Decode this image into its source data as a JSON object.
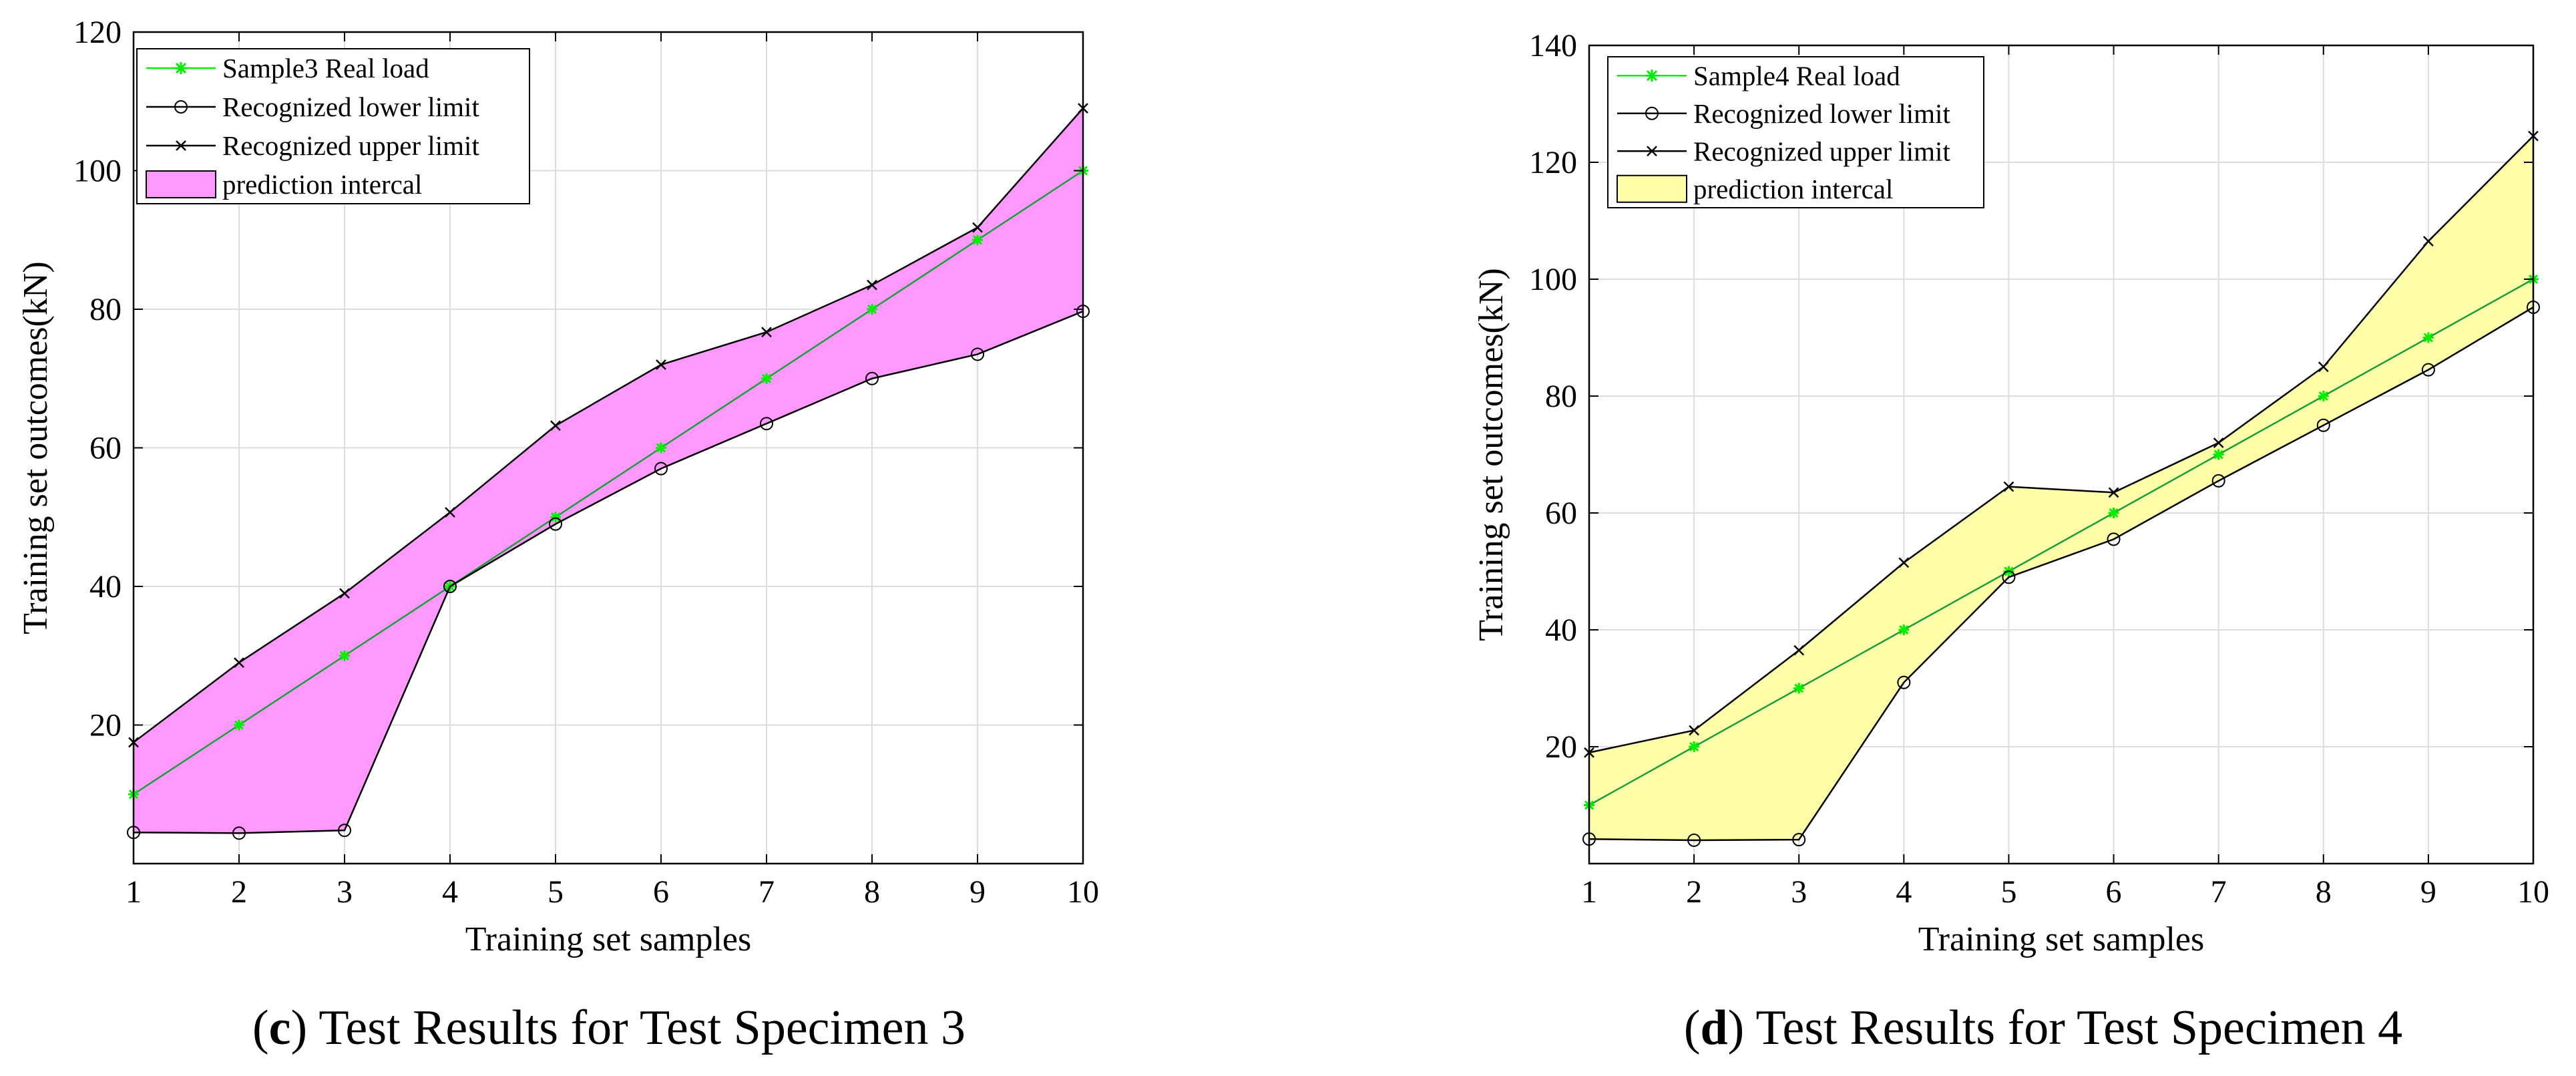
{
  "chart_data": [
    {
      "type": "line",
      "x": [
        1,
        2,
        3,
        4,
        5,
        6,
        7,
        8,
        9,
        10
      ],
      "series": [
        {
          "name": "Sample3 Real load",
          "values": [
            10,
            20,
            30,
            40,
            50,
            60,
            70,
            80,
            90,
            100
          ],
          "marker": "asterisk",
          "color": "#00ee00"
        },
        {
          "name": "Recognized lower limit",
          "values": [
            4.5,
            4.4,
            4.8,
            40,
            49,
            57,
            63.5,
            70,
            73.5,
            79.7
          ],
          "marker": "circle",
          "color": "#000000"
        },
        {
          "name": "Recognized upper limit",
          "values": [
            17.5,
            29,
            39,
            50.7,
            63.2,
            72,
            76.7,
            83.5,
            91.8,
            109
          ],
          "marker": "x",
          "color": "#000000"
        }
      ],
      "band": {
        "name": "prediction intercal",
        "color": "#ff99ff"
      },
      "title": "",
      "caption_letter": "c",
      "caption_text": " Test Results for Test Specimen 3",
      "xlabel": "Training set samples",
      "ylabel": "Training set outcomes(kN)",
      "xlim": [
        1,
        10
      ],
      "ylim": [
        0,
        120
      ],
      "xticks": [
        1,
        2,
        3,
        4,
        5,
        6,
        7,
        8,
        9,
        10
      ],
      "yticks": [
        20,
        40,
        60,
        80,
        100,
        120
      ],
      "grid": true,
      "legend_position": "top-left"
    },
    {
      "type": "line",
      "x": [
        1,
        2,
        3,
        4,
        5,
        6,
        7,
        8,
        9,
        10
      ],
      "series": [
        {
          "name": "Sample4 Real load",
          "values": [
            10,
            20,
            30,
            40,
            50,
            60,
            70,
            80,
            90,
            100
          ],
          "marker": "asterisk",
          "color": "#00ee00"
        },
        {
          "name": "Recognized lower limit",
          "values": [
            4.2,
            4,
            4.1,
            31,
            49,
            55.5,
            65.5,
            75,
            84.5,
            95.2
          ],
          "marker": "circle",
          "color": "#000000"
        },
        {
          "name": "Recognized upper limit",
          "values": [
            19,
            22.8,
            36.5,
            51.5,
            64.5,
            63.5,
            72,
            85,
            106.5,
            124.5
          ],
          "marker": "x",
          "color": "#000000"
        }
      ],
      "band": {
        "name": "prediction intercal",
        "color": "#ffffaa"
      },
      "title": "",
      "caption_letter": "d",
      "caption_text": " Test Results for Test Specimen 4",
      "xlabel": "Training set samples",
      "ylabel": "Training set outcomes(kN)",
      "xlim": [
        1,
        10
      ],
      "ylim": [
        0,
        140
      ],
      "xticks": [
        1,
        2,
        3,
        4,
        5,
        6,
        7,
        8,
        9,
        10
      ],
      "yticks": [
        20,
        40,
        60,
        80,
        100,
        120,
        140
      ],
      "grid": true,
      "legend_position": "top-left"
    }
  ]
}
